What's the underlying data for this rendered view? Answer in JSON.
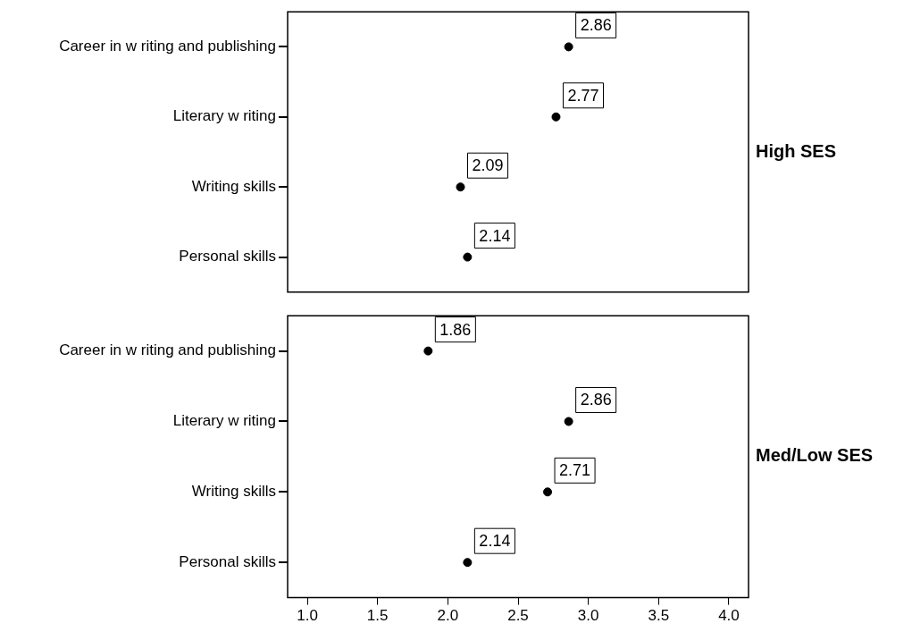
{
  "chart_data": [
    {
      "type": "scatter",
      "orientation": "horizontal",
      "title": "High SES",
      "categories": [
        "Career in w riting and publishing",
        "Literary w riting",
        "Writing skills",
        "Personal skills"
      ],
      "values": [
        2.86,
        2.77,
        2.09,
        2.14
      ],
      "color": "#000000",
      "marker": "circle",
      "data_labels": true,
      "xlim": [
        0.86,
        4.14
      ],
      "tick_labels": "y",
      "grid": false,
      "legend": false
    },
    {
      "type": "scatter",
      "orientation": "horizontal",
      "title": "Med/Low SES",
      "categories": [
        "Career in w riting and publishing",
        "Literary w riting",
        "Writing skills",
        "Personal skills"
      ],
      "values": [
        1.86,
        2.86,
        2.71,
        2.14
      ],
      "color": "#000000",
      "marker": "circle",
      "data_labels": true,
      "xlim": [
        0.86,
        4.14
      ],
      "xticks": [
        {
          "value": 1,
          "label": "1.0"
        },
        {
          "value": 1.5,
          "label": "1.5"
        },
        {
          "value": 2,
          "label": "2.0"
        },
        {
          "value": 2.5,
          "label": "2.5"
        },
        {
          "value": 3,
          "label": "3.0"
        },
        {
          "value": 3.5,
          "label": "3.5"
        },
        {
          "value": 4,
          "label": "4.0"
        }
      ],
      "grid": false,
      "legend": false
    }
  ]
}
